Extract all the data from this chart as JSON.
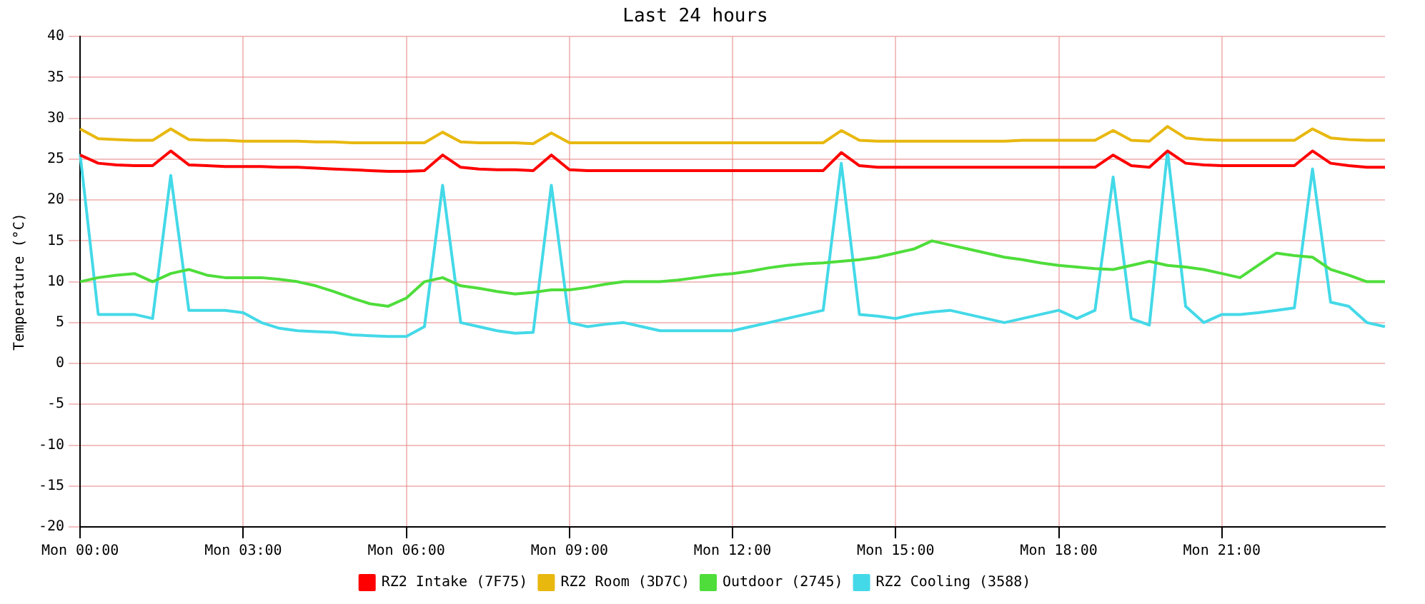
{
  "chart_data": {
    "type": "line",
    "title": "Last 24 hours",
    "ylabel": "Temperature (°C)",
    "categories": [
      "Mon 00:00",
      null,
      null,
      null,
      null,
      null,
      null,
      null,
      null,
      "Mon 03:00",
      null,
      null,
      null,
      null,
      null,
      null,
      null,
      null,
      "Mon 06:00",
      null,
      null,
      null,
      null,
      null,
      null,
      null,
      null,
      "Mon 09:00",
      null,
      null,
      null,
      null,
      null,
      null,
      null,
      null,
      "Mon 12:00",
      null,
      null,
      null,
      null,
      null,
      null,
      null,
      null,
      "Mon 15:00",
      null,
      null,
      null,
      null,
      null,
      null,
      null,
      null,
      "Mon 18:00",
      null,
      null,
      null,
      null,
      null,
      null,
      null,
      null,
      "Mon 21:00",
      null,
      null,
      null,
      null,
      null,
      null,
      null,
      null,
      null
    ],
    "ylim": [
      -20,
      40
    ],
    "yticks": [
      -20,
      -15,
      -10,
      -5,
      0,
      5,
      10,
      15,
      20,
      25,
      30,
      35,
      40
    ],
    "grid": true,
    "legend": "bottom",
    "marker": "none",
    "line_style": "solid",
    "series": [
      {
        "name": "RZ2 Intake (7F75)",
        "color": "#ff0000",
        "values": [
          25.5,
          24.5,
          24.3,
          24.2,
          24.2,
          26,
          24.3,
          24.2,
          24.1,
          24.1,
          24.1,
          24,
          24,
          23.9,
          23.8,
          23.7,
          23.6,
          23.5,
          23.5,
          23.6,
          25.5,
          24,
          23.8,
          23.7,
          23.7,
          23.6,
          25.5,
          23.7,
          23.6,
          23.6,
          23.6,
          23.6,
          23.6,
          23.6,
          23.6,
          23.6,
          23.6,
          23.6,
          23.6,
          23.6,
          23.6,
          23.6,
          25.8,
          24.2,
          24,
          24,
          24,
          24,
          24,
          24,
          24,
          24,
          24,
          24,
          24,
          24,
          24,
          25.5,
          24.2,
          24,
          26,
          24.5,
          24.3,
          24.2,
          24.2,
          24.2,
          24.2,
          24.2,
          26,
          24.5,
          24.2,
          24,
          24
        ]
      },
      {
        "name": "RZ2 Room (3D7C)",
        "color": "#e8b80f",
        "values": [
          28.7,
          27.5,
          27.4,
          27.3,
          27.3,
          28.7,
          27.4,
          27.3,
          27.3,
          27.2,
          27.2,
          27.2,
          27.2,
          27.1,
          27.1,
          27,
          27,
          27,
          27,
          27,
          28.3,
          27.1,
          27,
          27,
          27,
          26.9,
          28.2,
          27,
          27,
          27,
          27,
          27,
          27,
          27,
          27,
          27,
          27,
          27,
          27,
          27,
          27,
          27,
          28.5,
          27.3,
          27.2,
          27.2,
          27.2,
          27.2,
          27.2,
          27.2,
          27.2,
          27.2,
          27.3,
          27.3,
          27.3,
          27.3,
          27.3,
          28.5,
          27.3,
          27.2,
          29,
          27.6,
          27.4,
          27.3,
          27.3,
          27.3,
          27.3,
          27.3,
          28.7,
          27.6,
          27.4,
          27.3,
          27.3
        ]
      },
      {
        "name": "Outdoor (2745)",
        "color": "#4fdd3b",
        "values": [
          10,
          10.5,
          10.8,
          11,
          10,
          11,
          11.5,
          10.8,
          10.5,
          10.5,
          10.5,
          10.3,
          10,
          9.5,
          8.8,
          8,
          7.3,
          7,
          8,
          10,
          10.5,
          9.5,
          9.2,
          8.8,
          8.5,
          8.7,
          9,
          9,
          9.3,
          9.7,
          10,
          10,
          10,
          10.2,
          10.5,
          10.8,
          11,
          11.3,
          11.7,
          12,
          12.2,
          12.3,
          12.5,
          12.7,
          13,
          13.5,
          14,
          15,
          14.5,
          14,
          13.5,
          13,
          12.7,
          12.3,
          12,
          11.8,
          11.6,
          11.5,
          12,
          12.5,
          12,
          11.8,
          11.5,
          11,
          10.5,
          12,
          13.5,
          13.2,
          13,
          11.5,
          10.8,
          10,
          10
        ]
      },
      {
        "name": "RZ2 Cooling (3588)",
        "color": "#44d9e8",
        "values": [
          25.6,
          6,
          6,
          6,
          5.5,
          23,
          6.5,
          6.5,
          6.5,
          6.2,
          5,
          4.3,
          4,
          3.9,
          3.8,
          3.5,
          3.4,
          3.3,
          3.3,
          4.5,
          21.8,
          5,
          4.5,
          4,
          3.7,
          3.8,
          21.8,
          5,
          4.5,
          4.8,
          5,
          4.5,
          4,
          4,
          4,
          4,
          4,
          4.5,
          5,
          5.5,
          6,
          6.5,
          24.5,
          6,
          5.8,
          5.5,
          6,
          6.3,
          6.5,
          6,
          5.5,
          5,
          5.5,
          6,
          6.5,
          5.5,
          6.5,
          22.8,
          5.5,
          4.7,
          26,
          7,
          5,
          6,
          6,
          6.2,
          6.5,
          6.8,
          23.8,
          7.5,
          7,
          5,
          4.5
        ]
      }
    ]
  }
}
